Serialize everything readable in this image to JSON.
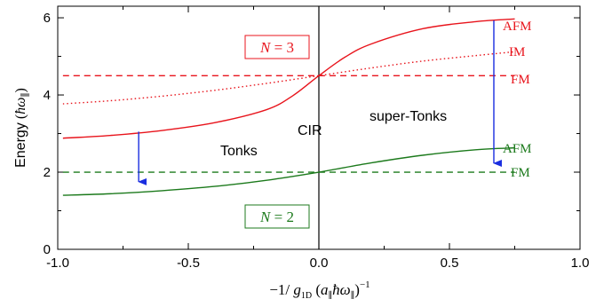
{
  "chart_data": {
    "type": "line",
    "xlabel": "−1/ g_1D  (a_∥ħω_∥)^−1",
    "xlabel_parts": {
      "lead": "−1/ ",
      "g": "g",
      "g_sub": "1D",
      "mid": "  (",
      "a": "a",
      "a_sub": "∥",
      "hw": "ħω",
      "w_sub": "∥",
      "close": ")",
      "sup": "−1"
    },
    "ylabel": "Energy (ħω_∥)",
    "ylabel_parts": {
      "text": "Energy",
      "open": " (",
      "hw": "ħω",
      "sub": "∥",
      "close": ")"
    },
    "xlim": [
      -1.0,
      1.0
    ],
    "ylim": [
      0,
      6.3
    ],
    "xticks": [
      {
        "value": -1.0,
        "label": "-1.0"
      },
      {
        "value": -0.5,
        "label": "-0.5"
      },
      {
        "value": 0.0,
        "label": "0.0"
      },
      {
        "value": 0.5,
        "label": "0.5"
      },
      {
        "value": 1.0,
        "label": "1.0"
      }
    ],
    "yticks": [
      {
        "value": 0,
        "label": "0"
      },
      {
        "value": 2,
        "label": "2"
      },
      {
        "value": 4,
        "label": "4"
      },
      {
        "value": 6,
        "label": "6"
      }
    ],
    "x_minor_ticks": [
      -0.75,
      -0.25,
      0.25,
      0.75
    ],
    "y_minor_ticks": [
      1,
      3,
      5
    ],
    "vertical_line_x": 0.0,
    "series": [
      {
        "id": "n3-afm",
        "color": "#e8141c",
        "style": "solid",
        "x": [
          -0.98,
          -0.8,
          -0.6,
          -0.4,
          -0.2,
          -0.1,
          0.0,
          0.1,
          0.2,
          0.4,
          0.6,
          0.75
        ],
        "y": [
          2.88,
          2.95,
          3.08,
          3.28,
          3.62,
          3.98,
          4.5,
          4.98,
          5.32,
          5.72,
          5.9,
          5.97
        ]
      },
      {
        "id": "n3-im",
        "color": "#e8141c",
        "style": "dotted",
        "x": [
          -0.98,
          -0.8,
          -0.6,
          -0.4,
          -0.2,
          0.0,
          0.2,
          0.4,
          0.6,
          0.75
        ],
        "y": [
          3.77,
          3.85,
          3.97,
          4.12,
          4.3,
          4.5,
          4.7,
          4.88,
          5.02,
          5.12
        ]
      },
      {
        "id": "n3-fm",
        "color": "#e8141c",
        "style": "dashed",
        "x": [
          -0.98,
          0.75
        ],
        "y": [
          4.5,
          4.5
        ]
      },
      {
        "id": "n2-afm",
        "color": "#1c7a1c",
        "style": "solid",
        "x": [
          -0.98,
          -0.8,
          -0.6,
          -0.4,
          -0.2,
          0.0,
          0.2,
          0.4,
          0.6,
          0.75
        ],
        "y": [
          1.4,
          1.44,
          1.52,
          1.63,
          1.79,
          2.0,
          2.24,
          2.44,
          2.58,
          2.63
        ]
      },
      {
        "id": "n2-fm",
        "color": "#1c7a1c",
        "style": "dashed",
        "x": [
          -0.98,
          0.75
        ],
        "y": [
          2.0,
          2.0
        ]
      }
    ],
    "arrows": [
      {
        "id": "arrow-left",
        "x": -0.69,
        "y_from": 3.05,
        "y_to": 1.52,
        "color": "#1a2ee0"
      },
      {
        "id": "arrow-right",
        "x": 0.67,
        "y_from": 5.93,
        "y_to": 2.0,
        "color": "#1a2ee0"
      }
    ],
    "series_labels": [
      {
        "id": "afm-red",
        "text": "AFM",
        "color": "#e8141c"
      },
      {
        "id": "im-red",
        "text": "IM",
        "color": "#e8141c"
      },
      {
        "id": "fm-red",
        "text": "FM",
        "color": "#e8141c"
      },
      {
        "id": "afm-green",
        "text": "AFM",
        "color": "#1c7a1c"
      },
      {
        "id": "fm-green",
        "text": "FM",
        "color": "#1c7a1c"
      }
    ],
    "region_labels": [
      {
        "id": "tonks",
        "text": "Tonks"
      },
      {
        "id": "cir",
        "text": "CIR"
      },
      {
        "id": "super-tonks",
        "text": "super-Tonks"
      }
    ],
    "boxes": [
      {
        "id": "n3",
        "var": "N",
        "eq": " = 3",
        "color": "#e8141c"
      },
      {
        "id": "n2",
        "var": "N",
        "eq": " = 2",
        "color": "#1c7a1c"
      }
    ]
  }
}
